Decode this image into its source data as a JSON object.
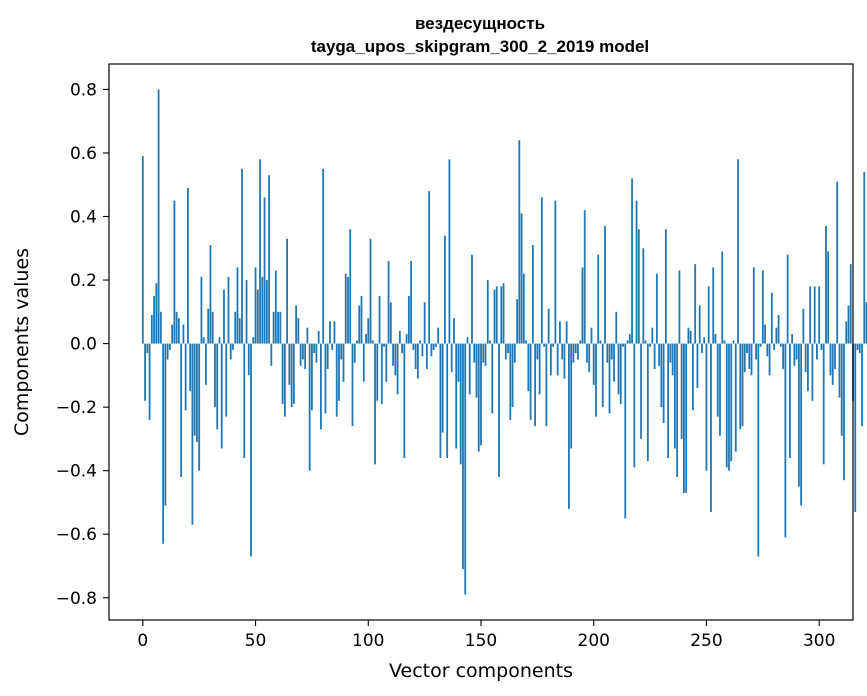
{
  "chart_data": {
    "type": "bar",
    "title": "вездесущность",
    "subtitle": "tayga_upos_skipgram_300_2_2019 model",
    "xlabel": "Vector components",
    "ylabel": "Components values",
    "xlim": [
      -15,
      315
    ],
    "ylim": [
      -0.87,
      0.88
    ],
    "xticks": [
      0,
      50,
      100,
      150,
      200,
      250,
      300
    ],
    "xtick_labels": [
      "0",
      "50",
      "100",
      "150",
      "200",
      "250",
      "300"
    ],
    "yticks": [
      -0.8,
      -0.6,
      -0.4,
      -0.2,
      0.0,
      0.2,
      0.4,
      0.6,
      0.8
    ],
    "ytick_labels": [
      "−0.8",
      "−0.6",
      "−0.4",
      "−0.2",
      "0.0",
      "0.2",
      "0.4",
      "0.6",
      "0.8"
    ],
    "bar_color": "#1f77b4",
    "grid": false,
    "values": [
      0.59,
      -0.18,
      -0.03,
      -0.24,
      0.09,
      0.15,
      0.19,
      0.8,
      0.1,
      -0.63,
      -0.51,
      -0.05,
      -0.02,
      0.06,
      0.45,
      0.1,
      0.08,
      -0.42,
      0.06,
      -0.21,
      0.49,
      -0.15,
      -0.57,
      -0.29,
      -0.31,
      -0.4,
      0.21,
      0.02,
      -0.13,
      0.11,
      0.31,
      0.1,
      -0.2,
      -0.27,
      0.02,
      -0.33,
      0.17,
      -0.23,
      0.21,
      -0.05,
      -0.02,
      0.1,
      0.24,
      0.08,
      0.55,
      -0.36,
      0.2,
      -0.1,
      -0.67,
      0.02,
      0.24,
      0.17,
      0.58,
      0.21,
      0.46,
      0.2,
      0.53,
      -0.07,
      0.1,
      0.23,
      0.1,
      0.1,
      -0.19,
      -0.23,
      0.33,
      -0.13,
      -0.2,
      -0.19,
      0.12,
      0.08,
      -0.07,
      -0.05,
      -0.08,
      0.05,
      -0.4,
      -0.21,
      -0.03,
      -0.06,
      0.04,
      -0.27,
      0.55,
      -0.22,
      -0.08,
      0.07,
      -0.02,
      0.07,
      -0.23,
      -0.18,
      -0.05,
      -0.12,
      0.22,
      0.21,
      0.36,
      -0.26,
      -0.06,
      0.01,
      0.12,
      0.15,
      -0.12,
      0.03,
      0.08,
      0.33,
      0.01,
      -0.38,
      -0.18,
      0.15,
      -0.19,
      -0.01,
      -0.12,
      0.26,
      0.13,
      -0.07,
      -0.1,
      -0.16,
      0.04,
      -0.03,
      -0.36,
      0.03,
      0.15,
      0.26,
      -0.02,
      -0.08,
      -0.11,
      0.01,
      -0.04,
      0.13,
      -0.08,
      0.48,
      -0.04,
      -0.02,
      -0.01,
      0.05,
      -0.36,
      -0.28,
      0.34,
      -0.36,
      0.58,
      -0.09,
      0.08,
      -0.33,
      -0.12,
      -0.38,
      -0.71,
      -0.79,
      0.02,
      -0.16,
      0.28,
      -0.06,
      -0.17,
      -0.34,
      -0.32,
      -0.06,
      -0.07,
      0.2,
      0.01,
      -0.22,
      0.17,
      0.18,
      -0.42,
      0.18,
      0.19,
      -0.05,
      -0.03,
      -0.24,
      -0.2,
      -0.06,
      0.14,
      0.64,
      0.41,
      0.22,
      0.01,
      -0.15,
      -0.24,
      0.31,
      -0.26,
      -0.05,
      -0.16,
      0.46,
      -0.01,
      -0.26,
      0.11,
      -0.1,
      -0.01,
      0.45,
      -0.1,
      0.07,
      -0.05,
      -0.11,
      0.07,
      -0.52,
      -0.33,
      -0.06,
      -0.03,
      -0.05,
      0.01,
      0.24,
      0.42,
      -0.06,
      -0.09,
      0.05,
      -0.13,
      -0.23,
      0.28,
      0.01,
      -0.2,
      0.37,
      -0.06,
      -0.22,
      -0.05,
      -0.12,
      0.1,
      -0.16,
      -0.19,
      -0.01,
      -0.55,
      0.01,
      0.03,
      0.52,
      -0.39,
      0.45,
      0.36,
      -0.3,
      0.3,
      0.01,
      -0.37,
      -0.01,
      0.05,
      -0.08,
      0.22,
      -0.07,
      -0.2,
      -0.25,
      0.36,
      -0.36,
      -0.06,
      -0.1,
      -0.33,
      -0.42,
      0.23,
      -0.3,
      -0.47,
      -0.47,
      0.05,
      0.04,
      -0.21,
      0.25,
      -0.14,
      0.12,
      -0.03,
      0.02,
      -0.4,
      0.18,
      -0.53,
      0.24,
      0.03,
      -0.23,
      -0.29,
      0.29,
      0.01,
      -0.39,
      -0.4,
      -0.37,
      0.01,
      -0.34,
      0.58,
      -0.27,
      -0.26,
      -0.09,
      -0.03,
      -0.08,
      -0.1,
      0.24,
      -0.05,
      -0.67,
      -0.01,
      0.23,
      0.06,
      -0.04,
      -0.1,
      0.16,
      -0.02,
      0.05,
      0.09,
      -0.01,
      -0.08,
      -0.61,
      0.28,
      -0.36,
      0.03,
      -0.07,
      -0.05,
      -0.45,
      -0.51,
      0.11,
      -0.09,
      -0.15,
      0.18,
      -0.18,
      0.18,
      -0.05,
      0.18,
      -0.02,
      -0.38,
      0.37,
      0.29,
      -0.1,
      -0.13,
      -0.08,
      0.51,
      -0.17,
      -0.29,
      -0.43,
      0.07,
      0.12,
      0.25,
      -0.18,
      -0.53,
      -0.02,
      -0.03,
      -0.26,
      0.54,
      0.13
    ]
  }
}
